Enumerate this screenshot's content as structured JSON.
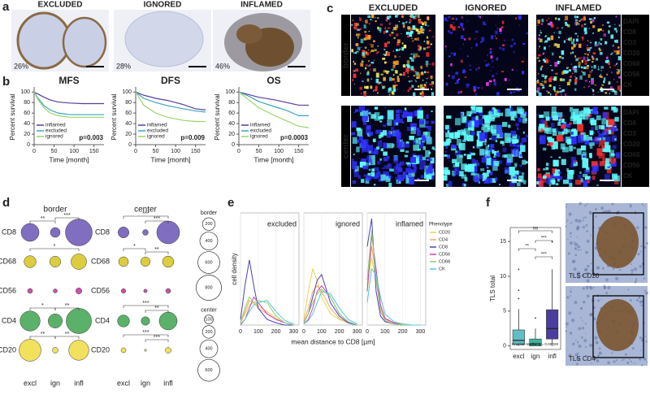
{
  "a": {
    "letter": "a",
    "images": [
      {
        "title": "EXCLUDED",
        "percent": "26%"
      },
      {
        "title": "IGNORED",
        "percent": "28%"
      },
      {
        "title": "INFLAMED",
        "percent": "46%"
      }
    ]
  },
  "b": {
    "letter": "b",
    "y_label": "Percent survival",
    "x_label": "Time [month]",
    "xlim": [
      0,
      175
    ],
    "ylim": [
      0,
      105
    ],
    "xticks": [
      0,
      50,
      100,
      150
    ],
    "yticks": [
      0,
      20,
      40,
      60,
      80,
      100
    ],
    "charts": [
      {
        "title": "MFS",
        "p_value": "p=0.003",
        "series": [
          {
            "name": "inflamed",
            "color": "#5b3d9e",
            "x": [
              0,
              10,
              25,
              40,
              60,
              90,
              120,
              175
            ],
            "values": [
              100,
              96,
              90,
              85,
              81,
              79,
              78,
              78
            ]
          },
          {
            "name": "excluded",
            "color": "#3aa7b8",
            "x": [
              0,
              10,
              25,
              40,
              60,
              90,
              175
            ],
            "values": [
              100,
              88,
              74,
              66,
              60,
              57,
              57
            ]
          },
          {
            "name": "ignored",
            "color": "#9bd36a",
            "x": [
              0,
              10,
              25,
              40,
              60,
              90,
              175
            ],
            "values": [
              100,
              85,
              70,
              60,
              55,
              52,
              52
            ]
          }
        ]
      },
      {
        "title": "DFS",
        "p_value": "p=0.009",
        "series": [
          {
            "name": "inflamed",
            "color": "#5b3d9e",
            "x": [
              0,
              20,
              50,
              80,
              120,
              150,
              175
            ],
            "values": [
              100,
              94,
              88,
              84,
              76,
              68,
              66
            ]
          },
          {
            "name": "excluded",
            "color": "#3aa7b8",
            "x": [
              0,
              20,
              50,
              80,
              120,
              150,
              175
            ],
            "values": [
              100,
              88,
              80,
              74,
              68,
              64,
              62
            ]
          },
          {
            "name": "ignored",
            "color": "#9bd36a",
            "x": [
              0,
              20,
              50,
              80,
              120,
              150,
              175
            ],
            "values": [
              100,
              75,
              60,
              52,
              46,
              44,
              44
            ]
          }
        ]
      },
      {
        "title": "OS",
        "p_value": "p=0.0003",
        "series": [
          {
            "name": "inflamed",
            "color": "#5b3d9e",
            "x": [
              0,
              25,
              50,
              90,
              120,
              150,
              175
            ],
            "values": [
              100,
              95,
              90,
              85,
              80,
              75,
              75
            ]
          },
          {
            "name": "excluded",
            "color": "#3aa7b8",
            "x": [
              0,
              25,
              50,
              90,
              120,
              150,
              175
            ],
            "values": [
              100,
              92,
              82,
              72,
              65,
              55,
              55
            ]
          },
          {
            "name": "ignored",
            "color": "#9bd36a",
            "x": [
              0,
              25,
              50,
              90,
              120,
              150,
              175
            ],
            "values": [
              100,
              85,
              70,
              55,
              45,
              35,
              32
            ]
          }
        ]
      }
    ]
  },
  "c": {
    "letter": "c",
    "columns": [
      "EXCLUDED",
      "IGNORED",
      "INFLAMED"
    ],
    "rows": [
      "border",
      "center"
    ],
    "markers": [
      {
        "name": "DAPI",
        "color": "#3030ff"
      },
      {
        "name": "CD8",
        "color": "#ff3030"
      },
      {
        "name": "CD3",
        "color": "#e6e640"
      },
      {
        "name": "CD20",
        "color": "#ffff70"
      },
      {
        "name": "CD68",
        "color": "#ffa020"
      },
      {
        "name": "CD56",
        "color": "#ff40ff"
      },
      {
        "name": "CK",
        "color": "#60ffff"
      }
    ]
  },
  "d": {
    "letter": "d",
    "groups": [
      "excl",
      "ign",
      "infl"
    ],
    "markers": [
      "CD8",
      "CD68",
      "CD56",
      "CD4",
      "CD20"
    ],
    "colors": [
      "#6a55b5",
      "#d6c41c",
      "#c0359a",
      "#3ea34f",
      "#f0dc40"
    ],
    "grids": [
      {
        "title": "border",
        "values": [
          [
            400,
            120,
            900
          ],
          [
            180,
            150,
            300
          ],
          [
            30,
            20,
            45
          ],
          [
            500,
            250,
            800
          ],
          [
            600,
            40,
            500
          ]
        ],
        "significance": [
          "**",
          "***",
          "*",
          "*",
          "**",
          "**",
          "**"
        ]
      },
      {
        "title": "center",
        "values": [
          [
            150,
            40,
            650
          ],
          [
            120,
            110,
            160
          ],
          [
            25,
            15,
            30
          ],
          [
            180,
            90,
            400
          ],
          [
            30,
            5,
            40
          ]
        ],
        "significance": [
          "***",
          "***",
          "*",
          "**",
          "***",
          "**",
          "***",
          "***"
        ]
      }
    ],
    "size_legends": [
      {
        "title": "border",
        "sizes": [
          200,
          400,
          600,
          800
        ]
      },
      {
        "title": "center",
        "sizes": [
          100,
          200,
          400,
          600
        ]
      }
    ]
  },
  "e": {
    "letter": "e",
    "y_label": "cell density",
    "x_label": "mean distance to CD8 [µm]",
    "xlim": [
      0,
      330
    ],
    "ylim": [
      0,
      1
    ],
    "xticks": [
      0,
      100,
      200,
      300
    ],
    "legend_title": "Phenotype",
    "phenotypes": [
      {
        "name": "CD20",
        "color": "#e8d44d"
      },
      {
        "name": "CD4",
        "color": "#f0a86a"
      },
      {
        "name": "CD8",
        "color": "#4a3fc0"
      },
      {
        "name": "CD56",
        "color": "#d040c0"
      },
      {
        "name": "CD68",
        "color": "#8fcf6f"
      },
      {
        "name": "CK",
        "color": "#50c8d8"
      }
    ],
    "x": [
      0,
      25,
      50,
      75,
      100,
      150,
      200,
      250,
      300
    ],
    "panels": [
      {
        "title": "excluded",
        "values": [
          [
            0.02,
            0.1,
            0.18,
            0.2,
            0.17,
            0.12,
            0.06,
            0.02,
            0
          ],
          [
            0.02,
            0.12,
            0.22,
            0.2,
            0.15,
            0.1,
            0.05,
            0.02,
            0
          ],
          [
            0.05,
            0.35,
            0.58,
            0.35,
            0.15,
            0.05,
            0.02,
            0,
            0
          ],
          [
            0,
            0.05,
            0.15,
            0.25,
            0.2,
            0.1,
            0.05,
            0.02,
            0
          ],
          [
            0.03,
            0.15,
            0.25,
            0.2,
            0.22,
            0.2,
            0.08,
            0.02,
            0
          ],
          [
            0.01,
            0.05,
            0.12,
            0.18,
            0.2,
            0.22,
            0.12,
            0.04,
            0.01
          ]
        ]
      },
      {
        "title": "ignored",
        "values": [
          [
            0.05,
            0.3,
            0.5,
            0.4,
            0.25,
            0.1,
            0.05,
            0.02,
            0
          ],
          [
            0.03,
            0.15,
            0.3,
            0.35,
            0.3,
            0.15,
            0.06,
            0.02,
            0
          ],
          [
            0.02,
            0.1,
            0.25,
            0.4,
            0.45,
            0.2,
            0.08,
            0.02,
            0
          ],
          [
            0.01,
            0.05,
            0.15,
            0.3,
            0.35,
            0.25,
            0.1,
            0.03,
            0
          ],
          [
            0.02,
            0.1,
            0.2,
            0.28,
            0.32,
            0.25,
            0.1,
            0.03,
            0
          ],
          [
            0.01,
            0.04,
            0.1,
            0.2,
            0.3,
            0.28,
            0.15,
            0.05,
            0.01
          ]
        ]
      },
      {
        "title": "inflamed",
        "values": [
          [
            0.3,
            0.6,
            0.4,
            0.15,
            0.06,
            0.02,
            0.01,
            0,
            0
          ],
          [
            0.35,
            0.7,
            0.45,
            0.15,
            0.05,
            0.02,
            0,
            0,
            0
          ],
          [
            0.7,
            0.95,
            0.3,
            0.08,
            0.03,
            0.01,
            0,
            0,
            0
          ],
          [
            0.3,
            0.8,
            0.5,
            0.18,
            0.06,
            0.02,
            0,
            0,
            0
          ],
          [
            0.4,
            0.85,
            0.4,
            0.12,
            0.04,
            0.01,
            0,
            0,
            0
          ],
          [
            0.2,
            0.5,
            0.45,
            0.25,
            0.1,
            0.03,
            0.01,
            0,
            0
          ]
        ]
      }
    ]
  },
  "f": {
    "letter": "f",
    "y_label": "TLS total",
    "ylim": [
      -0.5,
      17
    ],
    "yticks": [
      0,
      5,
      10,
      15
    ],
    "groups": [
      "excl",
      "ign",
      "infl"
    ],
    "colors": [
      "#5fbfc6",
      "#3cb5a0",
      "#4b3d9e"
    ],
    "boxes": [
      {
        "min": 0,
        "q1": 0.2,
        "median": 0.8,
        "q3": 2.3,
        "max": 5.3,
        "outliers": [
          6.8,
          8,
          11
        ]
      },
      {
        "min": 0,
        "q1": 0,
        "median": 0.3,
        "q3": 1,
        "max": 2.5,
        "outliers": [
          4
        ]
      },
      {
        "min": 0,
        "q1": 1,
        "median": 2.5,
        "q3": 5.2,
        "max": 11,
        "outliers": [
          15
        ]
      }
    ],
    "test": "Kruskal−Wallis, p = 0.00029",
    "significance": [
      "ns",
      "***",
      "**",
      "***"
    ],
    "images": [
      "TLS CD20",
      "TLS CD4"
    ]
  }
}
